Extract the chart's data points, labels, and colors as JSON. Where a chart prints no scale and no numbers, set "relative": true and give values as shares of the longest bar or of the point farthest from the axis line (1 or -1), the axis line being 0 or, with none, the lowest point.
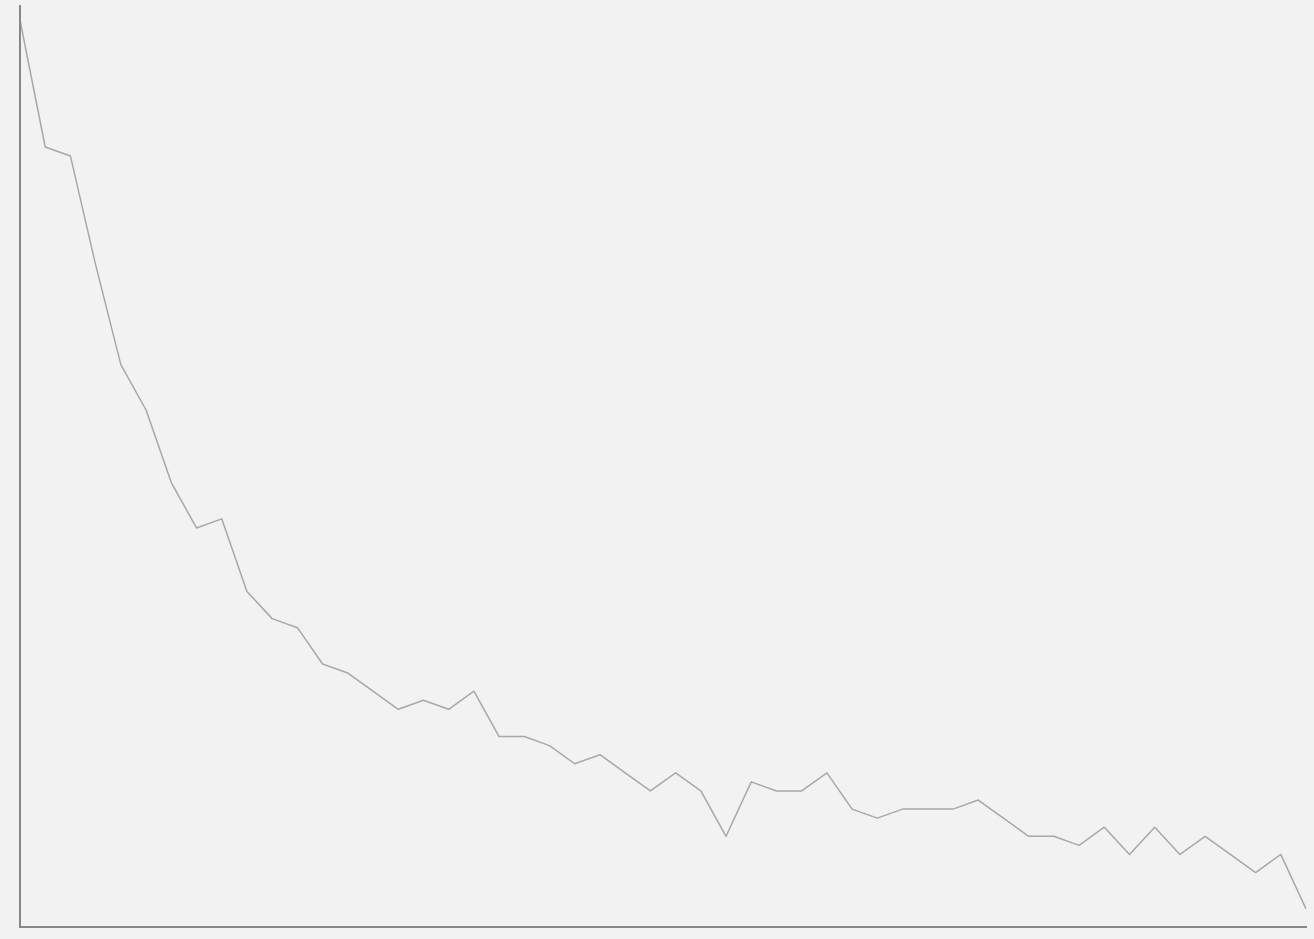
{
  "chart_data": {
    "type": "line",
    "relative": true,
    "tick_labels": false,
    "grid": false,
    "legend": false,
    "marker": "none",
    "categories": [
      null,
      null,
      null,
      null,
      null,
      null,
      null,
      null,
      null,
      null,
      null,
      null,
      null,
      null,
      null,
      null,
      null,
      null,
      null,
      null,
      null,
      null,
      null,
      null,
      null,
      null,
      null,
      null,
      null,
      null,
      null,
      null,
      null,
      null,
      null,
      null,
      null,
      null,
      null,
      null,
      null,
      null,
      null,
      null,
      null,
      null,
      null,
      null,
      null,
      null,
      null,
      null
    ],
    "series": [
      {
        "color": "#a8a8a8",
        "values": [
          1.0,
          0.86,
          0.85,
          0.73,
          0.62,
          0.57,
          0.49,
          0.44,
          0.45,
          0.37,
          0.34,
          0.33,
          0.29,
          0.28,
          0.26,
          0.24,
          0.25,
          0.24,
          0.26,
          0.21,
          0.21,
          0.2,
          0.18,
          0.19,
          0.17,
          0.15,
          0.17,
          0.15,
          0.1,
          0.16,
          0.15,
          0.15,
          0.17,
          0.13,
          0.12,
          0.13,
          0.13,
          0.13,
          0.14,
          0.12,
          0.1,
          0.1,
          0.09,
          0.11,
          0.08,
          0.11,
          0.08,
          0.1,
          0.08,
          0.06,
          0.08,
          0.02
        ]
      }
    ]
  }
}
